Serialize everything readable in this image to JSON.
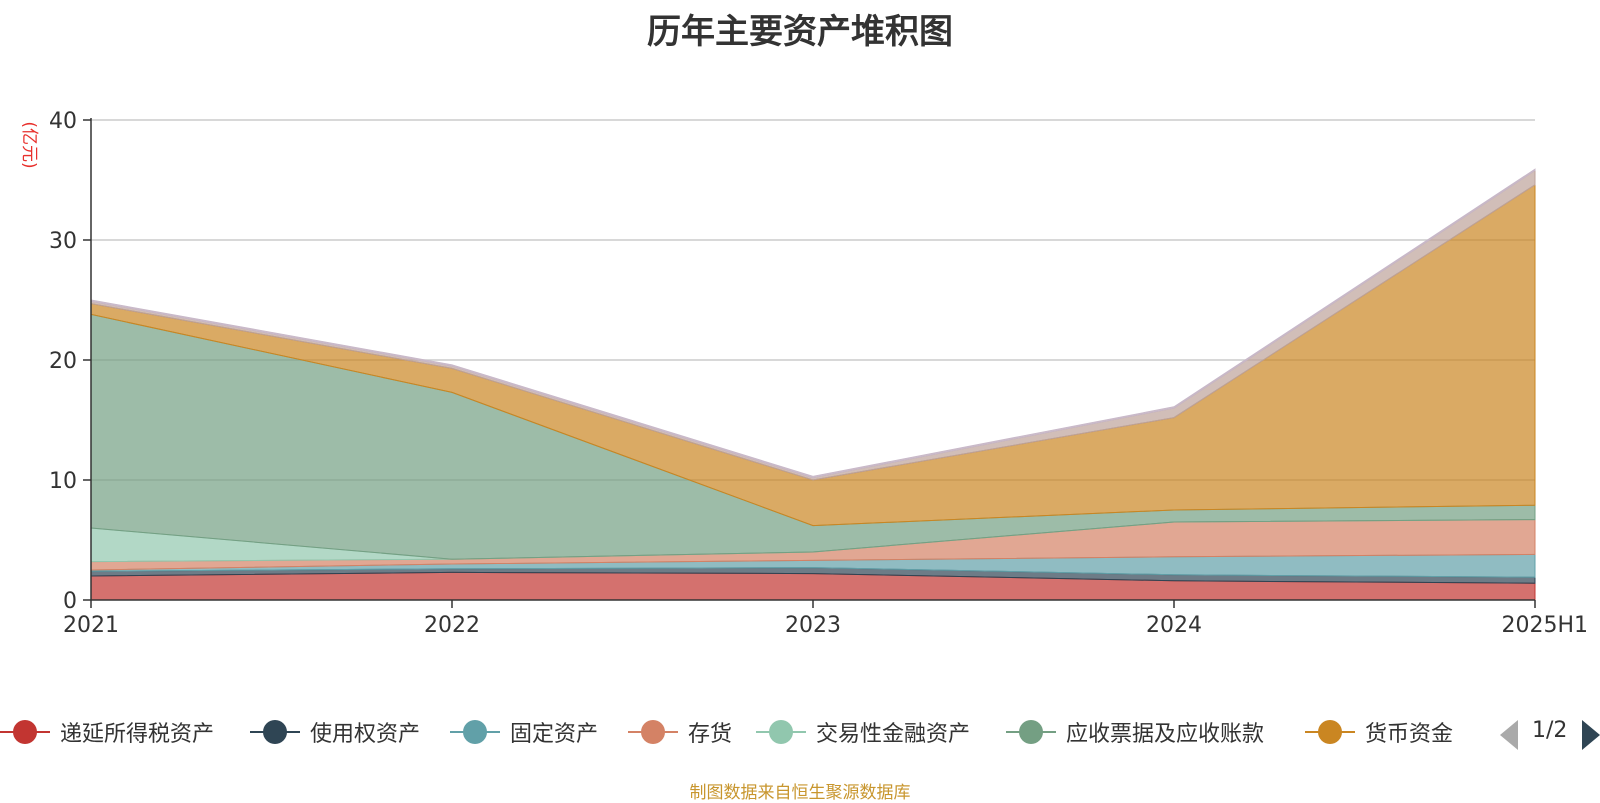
{
  "chart_data": {
    "type": "area",
    "title": "历年主要资产堆积图",
    "ylabel": "(亿元)",
    "xlabel": "",
    "categories": [
      "2021",
      "2022",
      "2023",
      "2024",
      "2025H1"
    ],
    "ylim": [
      0,
      40
    ],
    "yticks": [
      0,
      10,
      20,
      30,
      40
    ],
    "stacked": true,
    "grid": true,
    "series": [
      {
        "name": "递延所得税资产",
        "color": "#c23531",
        "values": [
          2.0,
          2.3,
          2.2,
          1.6,
          1.4
        ]
      },
      {
        "name": "使用权资产",
        "color": "#2f4554",
        "values": [
          0.4,
          0.3,
          0.5,
          0.5,
          0.5
        ]
      },
      {
        "name": "固定资产",
        "color": "#61a0a8",
        "values": [
          0.1,
          0.4,
          0.6,
          1.5,
          1.9
        ]
      },
      {
        "name": "存货",
        "color": "#d48265",
        "values": [
          0.7,
          0.4,
          0.7,
          2.9,
          2.9
        ]
      },
      {
        "name": "交易性金融资产",
        "color": "#91c7ae",
        "values": [
          2.8,
          0.0,
          0.0,
          0.0,
          0.0
        ]
      },
      {
        "name": "应收票据及应收账款",
        "color": "#749f83",
        "values": [
          17.8,
          13.9,
          2.2,
          1.0,
          1.2
        ]
      },
      {
        "name": "货币资金",
        "color": "#ca8622",
        "values": [
          0.9,
          2.0,
          3.8,
          7.7,
          26.7
        ]
      },
      {
        "name": "",
        "color": "#bda29a",
        "values": [
          0.2,
          0.2,
          0.2,
          0.8,
          1.2
        ]
      },
      {
        "name": "",
        "color": "#c8b8c8",
        "values": [
          0.1,
          0.1,
          0.1,
          0.1,
          0.1
        ]
      }
    ]
  },
  "legend": {
    "pager_text": "1/2"
  },
  "source": "制图数据来自恒生聚源数据库"
}
